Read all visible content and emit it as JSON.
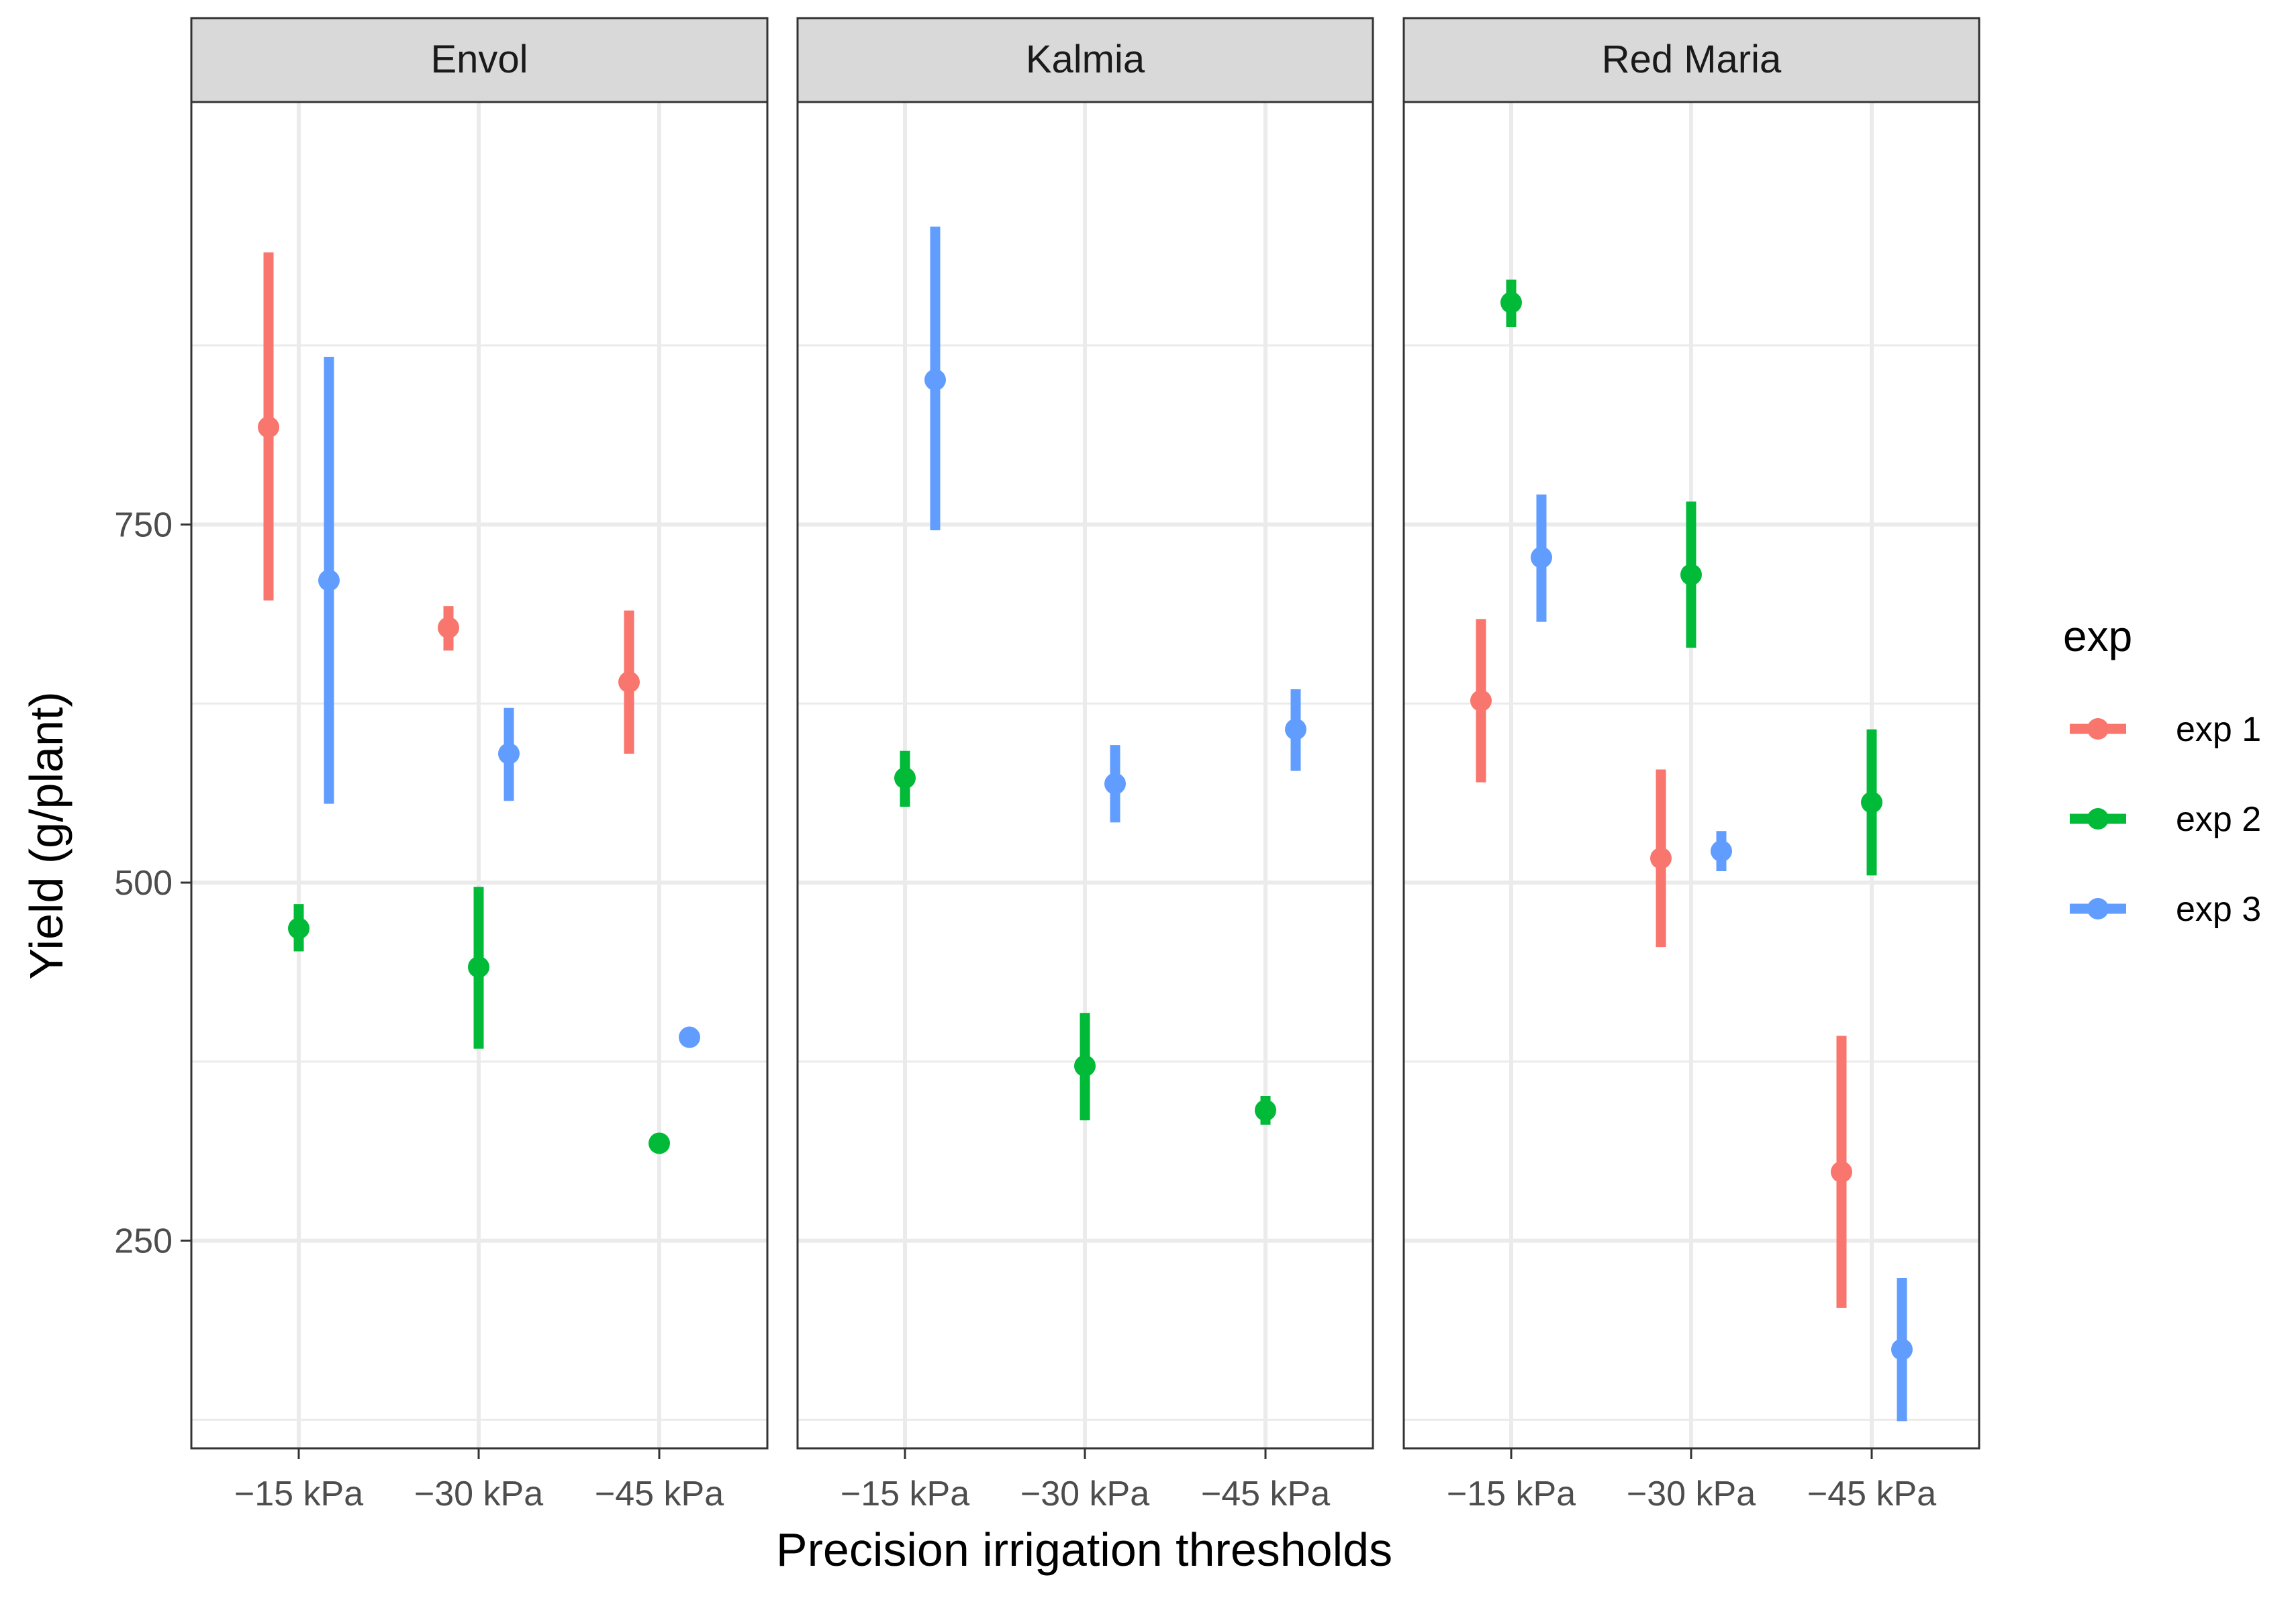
{
  "chart_data": {
    "type": "pointrange",
    "facet_by": "cultivar",
    "xlabel": "Precision irrigation thresholds",
    "ylabel": "Yield (g/plant)",
    "ylim": [
      105,
      1045
    ],
    "yticks": [
      250,
      500,
      750
    ],
    "categories": [
      "−15 kPa",
      "−30 kPa",
      "−45 kPa"
    ],
    "legend": {
      "title": "exp",
      "position": "right",
      "entries": [
        {
          "name": "exp 1",
          "color": "#F8766D"
        },
        {
          "name": "exp 2",
          "color": "#00BA38"
        },
        {
          "name": "exp 3",
          "color": "#619CFF"
        }
      ]
    },
    "panels": [
      {
        "title": "Envol",
        "series": [
          {
            "name": "exp 1",
            "points": [
              {
                "x": "−15 kPa",
                "y": 818,
                "ymin": 697,
                "ymax": 940
              },
              {
                "x": "−30 kPa",
                "y": 678,
                "ymin": 662,
                "ymax": 693
              },
              {
                "x": "−45 kPa",
                "y": 640,
                "ymin": 590,
                "ymax": 690
              }
            ]
          },
          {
            "name": "exp 2",
            "points": [
              {
                "x": "−15 kPa",
                "y": 468,
                "ymin": 452,
                "ymax": 485
              },
              {
                "x": "−30 kPa",
                "y": 441,
                "ymin": 384,
                "ymax": 497
              },
              {
                "x": "−45 kPa",
                "y": 318,
                "ymin": 318,
                "ymax": 318
              }
            ]
          },
          {
            "name": "exp 3",
            "points": [
              {
                "x": "−15 kPa",
                "y": 711,
                "ymin": 555,
                "ymax": 867
              },
              {
                "x": "−30 kPa",
                "y": 590,
                "ymin": 557,
                "ymax": 622
              },
              {
                "x": "−45 kPa",
                "y": 392,
                "ymin": 392,
                "ymax": 392
              }
            ]
          }
        ]
      },
      {
        "title": "Kalmia",
        "series": [
          {
            "name": "exp 2",
            "points": [
              {
                "x": "−15 kPa",
                "y": 573,
                "ymin": 553,
                "ymax": 592
              },
              {
                "x": "−30 kPa",
                "y": 372,
                "ymin": 334,
                "ymax": 409
              },
              {
                "x": "−45 kPa",
                "y": 341,
                "ymin": 331,
                "ymax": 351
              }
            ]
          },
          {
            "name": "exp 3",
            "points": [
              {
                "x": "−15 kPa",
                "y": 851,
                "ymin": 746,
                "ymax": 958
              },
              {
                "x": "−30 kPa",
                "y": 569,
                "ymin": 542,
                "ymax": 596
              },
              {
                "x": "−45 kPa",
                "y": 607,
                "ymin": 578,
                "ymax": 635
              }
            ]
          }
        ]
      },
      {
        "title": "Red Maria",
        "series": [
          {
            "name": "exp 1",
            "points": [
              {
                "x": "−15 kPa",
                "y": 627,
                "ymin": 570,
                "ymax": 684
              },
              {
                "x": "−30 kPa",
                "y": 517,
                "ymin": 455,
                "ymax": 579
              },
              {
                "x": "−45 kPa",
                "y": 298,
                "ymin": 203,
                "ymax": 393
              }
            ]
          },
          {
            "name": "exp 2",
            "points": [
              {
                "x": "−15 kPa",
                "y": 905,
                "ymin": 888,
                "ymax": 921
              },
              {
                "x": "−30 kPa",
                "y": 715,
                "ymin": 664,
                "ymax": 766
              },
              {
                "x": "−45 kPa",
                "y": 556,
                "ymin": 505,
                "ymax": 607
              }
            ]
          },
          {
            "name": "exp 3",
            "points": [
              {
                "x": "−15 kPa",
                "y": 727,
                "ymin": 682,
                "ymax": 771
              },
              {
                "x": "−30 kPa",
                "y": 522,
                "ymin": 508,
                "ymax": 536
              },
              {
                "x": "−45 kPa",
                "y": 174,
                "ymin": 124,
                "ymax": 224
              }
            ]
          }
        ]
      }
    ]
  }
}
